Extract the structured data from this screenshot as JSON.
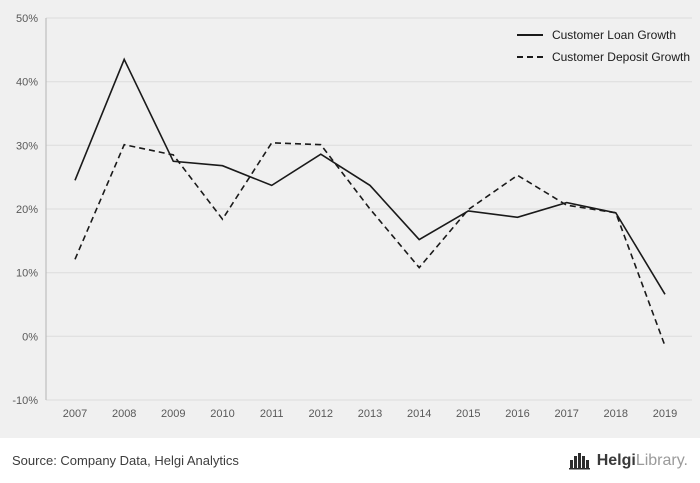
{
  "chart_data": {
    "type": "line",
    "title": "",
    "categories": [
      "2007",
      "2008",
      "2009",
      "2010",
      "2011",
      "2012",
      "2013",
      "2014",
      "2015",
      "2016",
      "2017",
      "2018",
      "2019"
    ],
    "series": [
      {
        "name": "Customer Loan Growth",
        "style": "solid",
        "values": [
          24.5,
          43.5,
          27.5,
          26.8,
          23.7,
          28.6,
          23.7,
          15.2,
          19.7,
          18.7,
          21.0,
          19.4,
          6.6
        ]
      },
      {
        "name": "Customer Deposit Growth",
        "style": "dashed",
        "values": [
          12.1,
          30.1,
          28.5,
          18.4,
          30.4,
          30.1,
          20.0,
          10.8,
          19.9,
          25.3,
          20.6,
          19.4,
          -1.5
        ]
      }
    ],
    "ylim": [
      -10,
      50
    ],
    "yticks": [
      50,
      40,
      30,
      20,
      10,
      0,
      -10
    ],
    "ytick_suffix": "%",
    "grid": true,
    "legend_position": "top-right",
    "line_color": "#1a1a1a",
    "background": "#f0f0f0",
    "grid_color": "#dcdcdc",
    "axis_color": "#b5b5b5"
  },
  "footer": {
    "source": "Source: Company Data, Helgi Analytics",
    "logo_primary": "Helgi",
    "logo_secondary": "Library."
  }
}
